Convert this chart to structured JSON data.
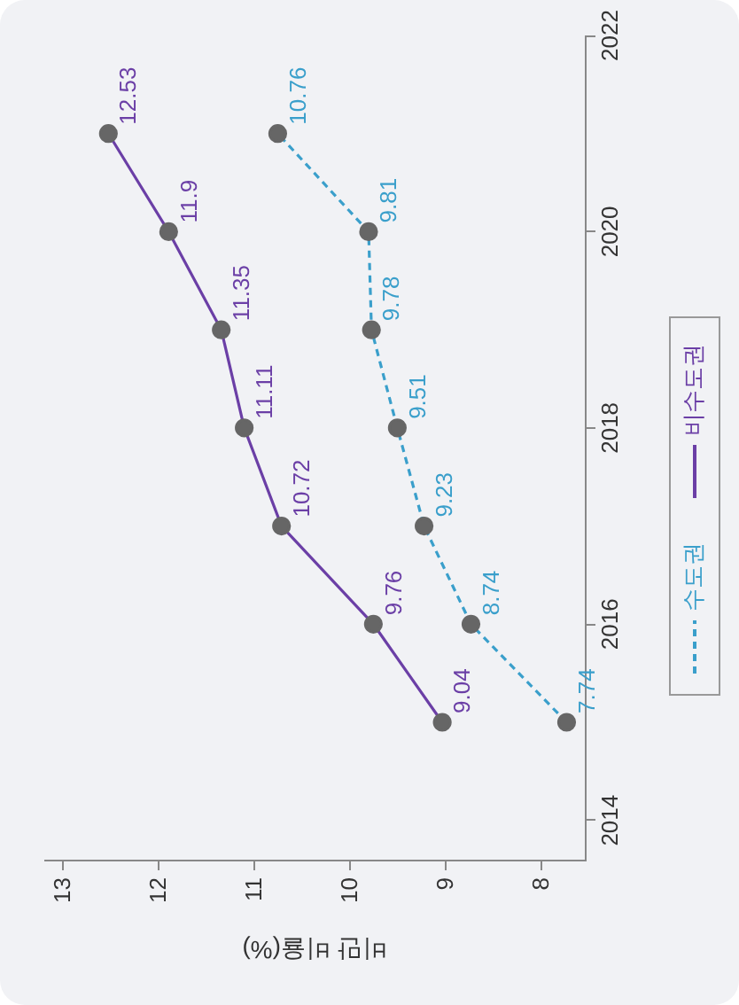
{
  "chart_data": {
    "type": "line",
    "orientation": "horizontal",
    "xlabel": "비만 비율(%)",
    "x": [
      2015,
      2016,
      2017,
      2018,
      2019,
      2020,
      2021
    ],
    "series": [
      {
        "name": "수도권",
        "color": "#3a9fcb",
        "line_style": "dashed",
        "values": [
          7.74,
          8.74,
          9.23,
          9.51,
          9.78,
          9.81,
          10.76
        ]
      },
      {
        "name": "비수도권",
        "color": "#6b3fa6",
        "line_style": "solid",
        "values": [
          9.04,
          9.76,
          10.72,
          11.11,
          11.35,
          11.9,
          12.53
        ]
      }
    ],
    "xlim": [
      13.2,
      7.55
    ],
    "xticks": [
      13,
      12,
      11,
      10,
      9,
      8
    ],
    "ylim": [
      2013.6,
      2022
    ],
    "yticks": [
      2014,
      2016,
      2018,
      2020,
      2022
    ],
    "grid": false,
    "legend": "right",
    "marker": "circle",
    "data_labels": true
  }
}
